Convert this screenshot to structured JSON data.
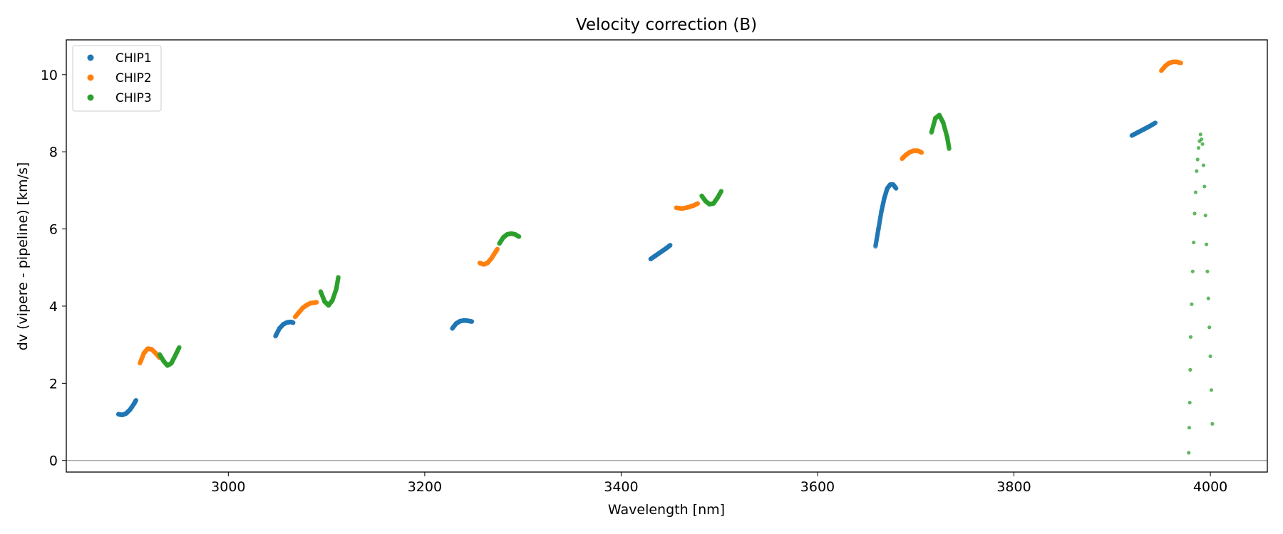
{
  "chart_data": {
    "type": "scatter",
    "title": "Velocity correction (B)",
    "xlabel": "Wavelength [nm]",
    "ylabel": "dv (vipere - pipeline) [km/s]",
    "xlim": [
      2835,
      4058
    ],
    "ylim": [
      -0.3,
      10.9
    ],
    "xticks": [
      3000,
      3200,
      3400,
      3600,
      3800,
      4000
    ],
    "yticks": [
      0,
      2,
      4,
      6,
      8,
      10
    ],
    "hline_y": 0,
    "legend_position": "upper-left",
    "series": [
      {
        "name": "CHIP1",
        "color": "#1f77b4",
        "segments": [
          {
            "x": [
              2888,
              2892,
              2896,
              2900,
              2904,
              2906
            ],
            "y": [
              1.2,
              1.18,
              1.22,
              1.32,
              1.47,
              1.56
            ]
          },
          {
            "x": [
              3048,
              3052,
              3056,
              3060,
              3064,
              3066
            ],
            "y": [
              3.22,
              3.42,
              3.53,
              3.58,
              3.59,
              3.57
            ]
          },
          {
            "x": [
              3228,
              3232,
              3236,
              3240,
              3244,
              3248
            ],
            "y": [
              3.42,
              3.55,
              3.61,
              3.63,
              3.62,
              3.6
            ]
          },
          {
            "x": [
              3430,
              3434,
              3438,
              3442,
              3446,
              3450
            ],
            "y": [
              5.22,
              5.29,
              5.36,
              5.43,
              5.5,
              5.58
            ]
          },
          {
            "x": [
              3659,
              3662,
              3665,
              3668,
              3671,
              3674,
              3677,
              3680
            ],
            "y": [
              5.55,
              6.0,
              6.45,
              6.8,
              7.05,
              7.15,
              7.15,
              7.05
            ]
          },
          {
            "x": [
              3920,
              3926,
              3932,
              3938,
              3944
            ],
            "y": [
              8.42,
              8.5,
              8.58,
              8.66,
              8.75
            ]
          }
        ]
      },
      {
        "name": "CHIP2",
        "color": "#ff7f0e",
        "segments": [
          {
            "x": [
              2910,
              2914,
              2918,
              2922,
              2926,
              2930
            ],
            "y": [
              2.52,
              2.78,
              2.9,
              2.88,
              2.78,
              2.66
            ]
          },
          {
            "x": [
              3068,
              3072,
              3076,
              3080,
              3084,
              3090
            ],
            "y": [
              3.72,
              3.84,
              3.96,
              4.03,
              4.08,
              4.1
            ]
          },
          {
            "x": [
              3256,
              3260,
              3264,
              3268,
              3272,
              3274
            ],
            "y": [
              5.12,
              5.08,
              5.12,
              5.24,
              5.4,
              5.48
            ]
          },
          {
            "x": [
              3456,
              3462,
              3468,
              3474,
              3478
            ],
            "y": [
              6.55,
              6.53,
              6.56,
              6.61,
              6.66
            ]
          },
          {
            "x": [
              3686,
              3690,
              3694,
              3698,
              3702,
              3706
            ],
            "y": [
              7.82,
              7.92,
              7.99,
              8.03,
              8.03,
              7.98
            ]
          },
          {
            "x": [
              3950,
              3954,
              3958,
              3962,
              3966,
              3970
            ],
            "y": [
              10.1,
              10.22,
              10.3,
              10.33,
              10.33,
              10.3
            ]
          }
        ]
      },
      {
        "name": "CHIP3",
        "color": "#2ca02c",
        "segments": [
          {
            "x": [
              2930,
              2934,
              2938,
              2942,
              2946,
              2950
            ],
            "y": [
              2.75,
              2.58,
              2.46,
              2.52,
              2.72,
              2.93
            ]
          },
          {
            "x": [
              3094,
              3098,
              3102,
              3106,
              3110,
              3112
            ],
            "y": [
              4.38,
              4.12,
              4.02,
              4.15,
              4.45,
              4.75
            ]
          },
          {
            "x": [
              3276,
              3280,
              3284,
              3288,
              3292,
              3296
            ],
            "y": [
              5.62,
              5.78,
              5.86,
              5.88,
              5.86,
              5.8
            ]
          },
          {
            "x": [
              3482,
              3486,
              3490,
              3494,
              3498,
              3502
            ],
            "y": [
              6.86,
              6.72,
              6.64,
              6.66,
              6.8,
              6.98
            ]
          },
          {
            "x": [
              3716,
              3720,
              3724,
              3728,
              3732,
              3734
            ],
            "y": [
              8.5,
              8.87,
              8.95,
              8.75,
              8.38,
              8.08
            ]
          },
          {
            "x": [
              3978,
              3979,
              3980,
              3982,
              3984,
              3986,
              3988,
              3990,
              3992,
              3994,
              3996,
              3998,
              4000,
              4002
            ],
            "y": [
              0.2,
              1.5,
              3.2,
              4.9,
              6.4,
              7.5,
              8.1,
              8.45,
              8.2,
              7.1,
              5.6,
              4.2,
              2.7,
              0.95
            ]
          }
        ]
      }
    ]
  }
}
